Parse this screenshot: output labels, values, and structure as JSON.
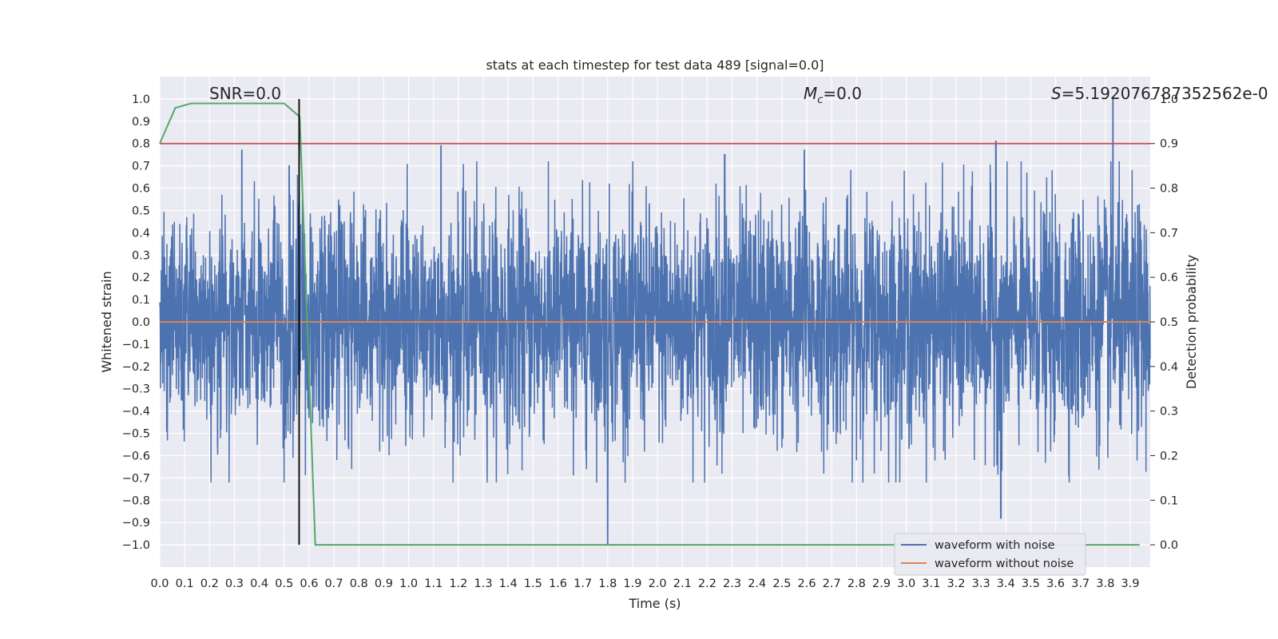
{
  "chart_data": {
    "type": "line",
    "title": "stats at each timestep for test data 489 [signal=0.0]",
    "xlabel": "Time (s)",
    "ylabel": "Whitened strain",
    "y2label": "Detection probability",
    "xlim": [
      0.0,
      3.98
    ],
    "ylim": [
      -1.1,
      1.1
    ],
    "y2lim": [
      -0.05,
      1.05
    ],
    "x_ticks": [
      "0.0",
      "0.1",
      "0.2",
      "0.3",
      "0.4",
      "0.5",
      "0.6",
      "0.7",
      "0.8",
      "0.9",
      "1.0",
      "1.1",
      "1.2",
      "1.3",
      "1.4",
      "1.5",
      "1.6",
      "1.7",
      "1.8",
      "1.9",
      "2.0",
      "2.1",
      "2.2",
      "2.3",
      "2.4",
      "2.5",
      "2.6",
      "2.7",
      "2.8",
      "2.9",
      "3.0",
      "3.1",
      "3.2",
      "3.3",
      "3.4",
      "3.5",
      "3.6",
      "3.7",
      "3.8",
      "3.9"
    ],
    "y_ticks": [
      "1.0",
      "0.9",
      "0.8",
      "0.7",
      "0.6",
      "0.5",
      "0.4",
      "0.3",
      "0.2",
      "0.1",
      "0.0",
      "−0.1",
      "−0.2",
      "−0.3",
      "−0.4",
      "−0.5",
      "−0.6",
      "−0.7",
      "−0.8",
      "−0.9",
      "−1.0"
    ],
    "y2_ticks": [
      "1.0",
      "0.9",
      "0.8",
      "0.7",
      "0.6",
      "0.5",
      "0.4",
      "0.3",
      "0.2",
      "0.1",
      "0.0"
    ],
    "grid": true,
    "legend_position": "lower-right",
    "annotations": {
      "snr": "SNR=0.0",
      "mc_sym": "M",
      "mc_sub": "c",
      "mc_rest": "=0.0",
      "s_sym": "S",
      "s_rest": "=5.192076787352562e-0"
    },
    "marker_line_x": 0.56,
    "threshold_line_prob": 0.9,
    "series": [
      {
        "name": "waveform with noise",
        "color": "#4c72b0",
        "note": "dense noise trace sampled over 0.0-3.98 s, amplitude mostly within ±0.7, peaks near 1.0 at 3.83 s and -1.0 at 1.80 s",
        "peaks": [
          [
            0.33,
            0.77
          ],
          [
            0.52,
            0.7
          ],
          [
            1.13,
            0.79
          ],
          [
            1.8,
            -1.0
          ],
          [
            2.27,
            0.75
          ],
          [
            2.59,
            0.77
          ],
          [
            3.36,
            0.81
          ],
          [
            3.38,
            -0.88
          ],
          [
            3.83,
            1.0
          ]
        ]
      },
      {
        "name": "waveform without noise",
        "color": "#dd8452",
        "values_note": "flat at 0.0",
        "value": 0.0
      },
      {
        "name": "detection probability",
        "color": "#55a868",
        "axis": "right",
        "x": [
          0.0,
          0.0625,
          0.125,
          0.1875,
          0.25,
          0.3125,
          0.375,
          0.4375,
          0.5,
          0.5625,
          0.625,
          0.6875,
          1.0,
          2.0,
          3.0,
          3.9375
        ],
        "values": [
          0.9,
          0.98,
          0.99,
          0.99,
          0.99,
          0.99,
          0.99,
          0.99,
          0.99,
          0.96,
          0.0,
          0.0,
          0.0,
          0.0,
          0.0,
          0.0
        ]
      }
    ],
    "colors": {
      "plot_background": "#eaeaf2",
      "grid": "#ffffff",
      "threshold": "#c44e52",
      "marker": "#000000"
    }
  }
}
